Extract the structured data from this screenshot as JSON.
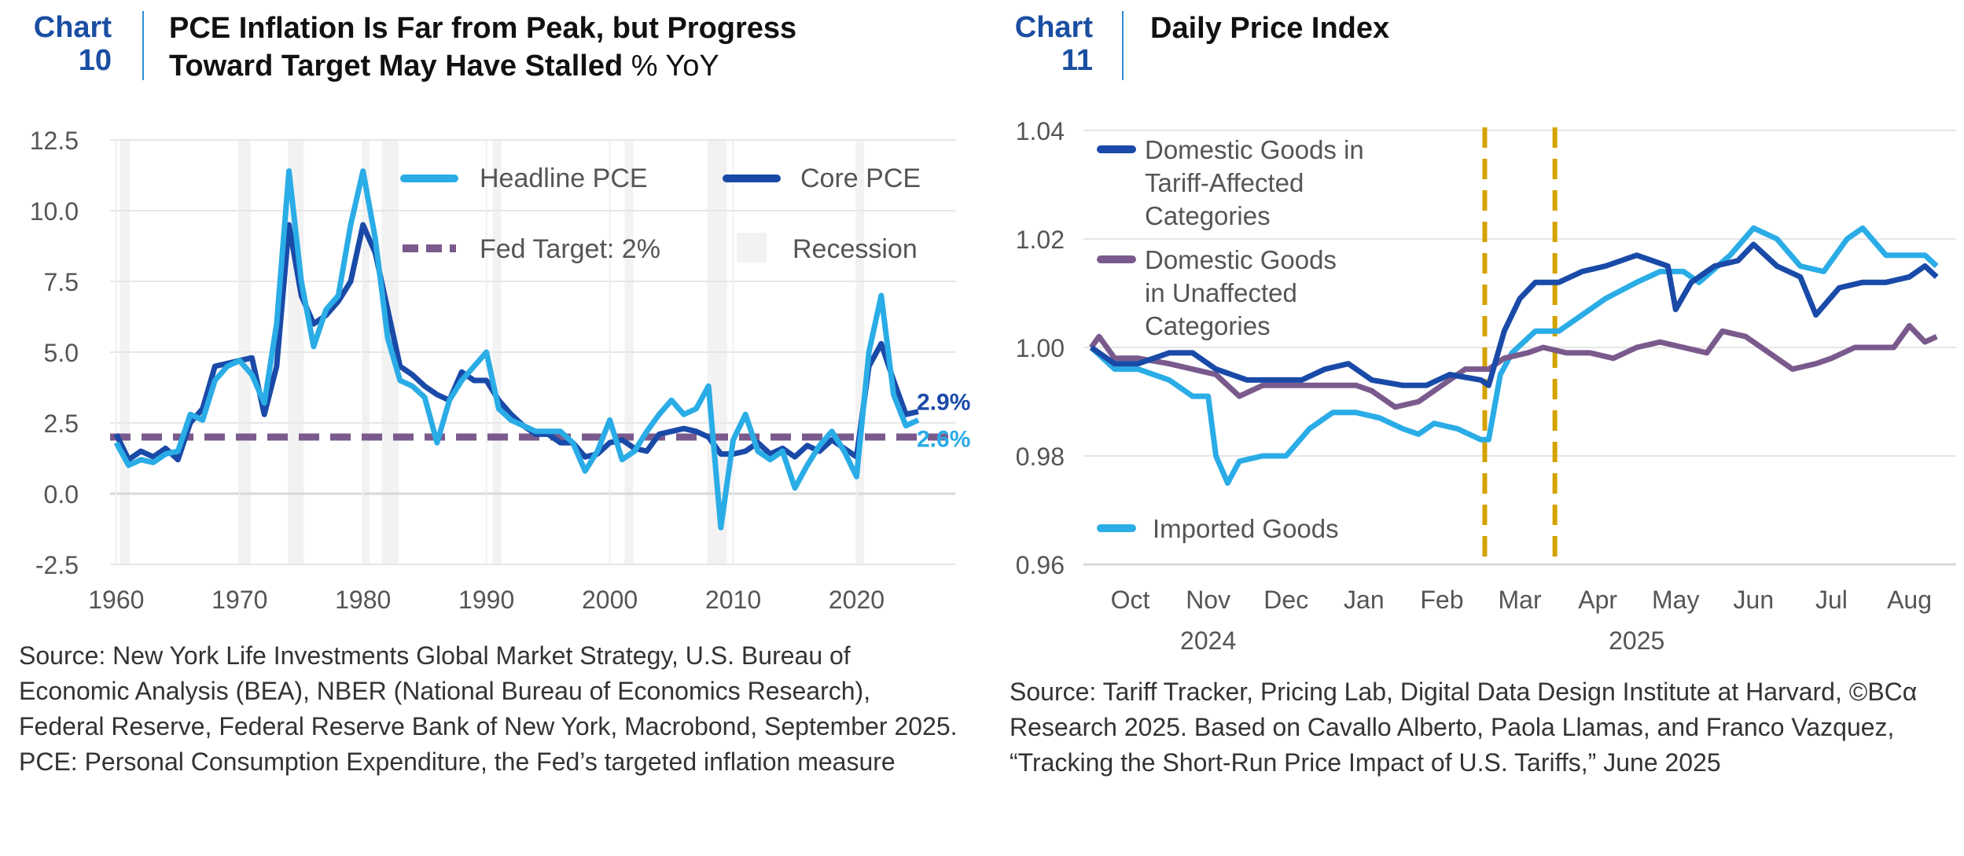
{
  "chart10": {
    "label_word": "Chart",
    "label_num": "10",
    "title_line1": "PCE Inflation Is Far from Peak, but Progress",
    "title_line2": "Toward Target May Have Stalled",
    "unit": "% YoY",
    "source": "Source: New York Life Investments Global Market Strategy, U.S. Bureau of Economic Analysis (BEA), NBER (National Bureau of Economics Research), Federal Reserve, Federal Reserve Bank of New York, Macrobond, September 2025. PCE: Personal Consumption Expenditure, the Fed’s targeted inflation measure"
  },
  "chart11": {
    "label_word": "Chart",
    "label_num": "11",
    "title": "Daily Price Index",
    "source": "Source: Tariff Tracker, Pricing Lab, Digital Data Design Institute at Harvard, ©BCα Research 2025. Based on Cavallo Alberto, Paola Llamas, and Franco Vazquez, “Tracking the Short-Run Price Impact of U.S. Tariffs,” June 2025"
  },
  "colors": {
    "headline": "#2aace6",
    "core": "#1a4aa8",
    "target": "#7a5a8c",
    "recession": "#f2f2f2",
    "tariff_line": "#d4a300",
    "grid": "#e6e6e6"
  },
  "chart_data": [
    {
      "type": "line",
      "title": "PCE Inflation Is Far from Peak, but Progress Toward Target May Have Stalled",
      "ylabel": "% YoY",
      "xlim": [
        1959.5,
        2028
      ],
      "ylim": [
        -2.5,
        12.5
      ],
      "yticks": [
        "12.5",
        "10.0",
        "7.5",
        "5.0",
        "2.5",
        "0.0",
        "-2.5"
      ],
      "ytick_values": [
        12.5,
        10,
        7.5,
        5,
        2.5,
        0,
        -2.5
      ],
      "xticks": [
        "1960",
        "1970",
        "1980",
        "1990",
        "2000",
        "2010",
        "2020"
      ],
      "xtick_values": [
        1960,
        1970,
        1980,
        1990,
        2000,
        2010,
        2020
      ],
      "x": [
        1960,
        1961,
        1962,
        1963,
        1964,
        1965,
        1966,
        1967,
        1968,
        1969,
        1970,
        1971,
        1972,
        1973,
        1974,
        1975,
        1976,
        1977,
        1978,
        1979,
        1980,
        1981,
        1982,
        1983,
        1984,
        1985,
        1986,
        1987,
        1988,
        1989,
        1990,
        1991,
        1992,
        1993,
        1994,
        1995,
        1996,
        1997,
        1998,
        1999,
        2000,
        2001,
        2002,
        2003,
        2004,
        2005,
        2006,
        2007,
        2008,
        2009,
        2010,
        2011,
        2012,
        2013,
        2014,
        2015,
        2016,
        2017,
        2018,
        2019,
        2020,
        2021,
        2022,
        2023,
        2024,
        2025
      ],
      "series": [
        {
          "name": "Headline PCE",
          "values": [
            1.8,
            1.0,
            1.2,
            1.1,
            1.4,
            1.5,
            2.8,
            2.6,
            4.0,
            4.5,
            4.7,
            4.2,
            3.2,
            6.0,
            11.4,
            7.5,
            5.2,
            6.5,
            7.0,
            9.5,
            11.4,
            9.0,
            5.5,
            4.0,
            3.8,
            3.4,
            1.8,
            3.3,
            4.0,
            4.5,
            5.0,
            3.0,
            2.6,
            2.4,
            2.2,
            2.2,
            2.2,
            1.8,
            0.8,
            1.5,
            2.6,
            1.2,
            1.5,
            2.2,
            2.8,
            3.3,
            2.8,
            3.0,
            3.8,
            -1.2,
            1.9,
            2.8,
            1.5,
            1.2,
            1.5,
            0.2,
            1.0,
            1.7,
            2.2,
            1.5,
            0.6,
            5.0,
            7.0,
            3.5,
            2.4,
            2.6
          ],
          "end_label": "2.6%"
        },
        {
          "name": "Core PCE",
          "values": [
            2.1,
            1.2,
            1.5,
            1.3,
            1.6,
            1.2,
            2.5,
            3.0,
            4.5,
            4.6,
            4.7,
            4.8,
            2.8,
            4.5,
            9.5,
            7.0,
            6.0,
            6.3,
            6.8,
            7.5,
            9.5,
            8.5,
            6.5,
            4.5,
            4.2,
            3.8,
            3.5,
            3.3,
            4.3,
            4.0,
            4.0,
            3.3,
            2.8,
            2.4,
            2.1,
            2.1,
            1.8,
            1.8,
            1.3,
            1.4,
            1.8,
            1.9,
            1.6,
            1.5,
            2.1,
            2.2,
            2.3,
            2.2,
            2.0,
            1.4,
            1.4,
            1.5,
            1.8,
            1.4,
            1.6,
            1.3,
            1.7,
            1.5,
            1.9,
            1.6,
            1.3,
            4.5,
            5.3,
            4.0,
            2.8,
            2.9
          ],
          "end_label": "2.9%"
        }
      ],
      "reference_line": {
        "name": "Fed Target: 2%",
        "value": 2
      },
      "recessions": [
        [
          1960.3,
          1961.1
        ],
        [
          1969.9,
          1970.9
        ],
        [
          1973.9,
          1975.2
        ],
        [
          1980.0,
          1980.5
        ],
        [
          1981.5,
          1982.9
        ],
        [
          1990.5,
          1991.2
        ],
        [
          2001.2,
          2001.9
        ],
        [
          2007.9,
          2009.5
        ],
        [
          2020.1,
          2020.4
        ]
      ],
      "recession_label": "Recession",
      "legend": "top-right",
      "grid": true
    },
    {
      "type": "line",
      "title": "Daily Price Index",
      "xlim": [
        0,
        11.1
      ],
      "ylim": [
        0.96,
        1.04
      ],
      "yticks": [
        "1.04",
        "1.02",
        "1.00",
        "0.98",
        "0.96"
      ],
      "ytick_values": [
        1.04,
        1.02,
        1.0,
        0.98,
        0.96
      ],
      "xticks": [
        "Oct",
        "Nov",
        "Dec",
        "Jan",
        "Feb",
        "Mar",
        "Apr",
        "May",
        "Jun",
        "Jul",
        "Aug"
      ],
      "xtick_values": [
        0.5,
        1.5,
        2.5,
        3.5,
        4.5,
        5.5,
        6.5,
        7.5,
        8.5,
        9.5,
        10.5
      ],
      "year_labels": [
        "2024",
        "2025"
      ],
      "year_label_positions": [
        1.5,
        7.0
      ],
      "vertical_markers": [
        5.05,
        5.95
      ],
      "series": [
        {
          "name": "Domestic Goods in Tariff-Affected Categories",
          "legend_lines": [
            "Domestic Goods in",
            "Tariff-Affected",
            "Categories"
          ],
          "x": [
            0,
            0.3,
            0.6,
            1.0,
            1.3,
            1.6,
            2.0,
            2.3,
            2.7,
            3.0,
            3.3,
            3.6,
            4.0,
            4.3,
            4.6,
            5.0,
            5.1,
            5.3,
            5.5,
            5.7,
            6.0,
            6.3,
            6.6,
            7.0,
            7.2,
            7.4,
            7.5,
            7.7,
            8.0,
            8.3,
            8.5,
            8.8,
            9.1,
            9.3,
            9.6,
            9.9,
            10.2,
            10.5,
            10.7,
            10.85
          ],
          "values": [
            1.0,
            0.997,
            0.997,
            0.999,
            0.999,
            0.996,
            0.994,
            0.994,
            0.994,
            0.996,
            0.997,
            0.994,
            0.993,
            0.993,
            0.995,
            0.994,
            0.993,
            1.003,
            1.009,
            1.012,
            1.012,
            1.014,
            1.015,
            1.017,
            1.016,
            1.015,
            1.007,
            1.012,
            1.015,
            1.016,
            1.019,
            1.015,
            1.013,
            1.006,
            1.011,
            1.012,
            1.012,
            1.013,
            1.015,
            1.013
          ]
        },
        {
          "name": "Domestic Goods in Unaffected Categories",
          "legend_lines": [
            "Domestic Goods",
            "in Unaffected",
            "Categories"
          ],
          "x": [
            0,
            0.1,
            0.3,
            0.6,
            1.0,
            1.3,
            1.6,
            1.9,
            2.2,
            2.5,
            2.8,
            3.1,
            3.4,
            3.6,
            3.9,
            4.2,
            4.5,
            4.8,
            5.1,
            5.3,
            5.6,
            5.8,
            6.1,
            6.4,
            6.7,
            7.0,
            7.3,
            7.6,
            7.9,
            8.1,
            8.4,
            8.7,
            9.0,
            9.3,
            9.5,
            9.8,
            10.1,
            10.3,
            10.5,
            10.7,
            10.85
          ],
          "values": [
            1.0,
            1.002,
            0.998,
            0.998,
            0.997,
            0.996,
            0.995,
            0.991,
            0.993,
            0.993,
            0.993,
            0.993,
            0.993,
            0.992,
            0.989,
            0.99,
            0.993,
            0.996,
            0.996,
            0.998,
            0.999,
            1.0,
            0.999,
            0.999,
            0.998,
            1.0,
            1.001,
            1.0,
            0.999,
            1.003,
            1.002,
            0.999,
            0.996,
            0.997,
            0.998,
            1.0,
            1.0,
            1.0,
            1.004,
            1.001,
            1.002
          ]
        },
        {
          "name": "Imported Goods",
          "legend_lines": [
            "Imported Goods"
          ],
          "x": [
            0,
            0.3,
            0.6,
            1.0,
            1.3,
            1.5,
            1.6,
            1.75,
            1.9,
            2.2,
            2.5,
            2.8,
            3.1,
            3.4,
            3.7,
            4.0,
            4.2,
            4.4,
            4.7,
            5.0,
            5.1,
            5.25,
            5.4,
            5.7,
            6.0,
            6.3,
            6.6,
            7.0,
            7.3,
            7.6,
            7.8,
            8.2,
            8.5,
            8.8,
            9.1,
            9.4,
            9.7,
            9.9,
            10.2,
            10.5,
            10.7,
            10.85
          ],
          "values": [
            1.0,
            0.996,
            0.996,
            0.994,
            0.991,
            0.991,
            0.98,
            0.975,
            0.979,
            0.98,
            0.98,
            0.985,
            0.988,
            0.988,
            0.987,
            0.985,
            0.984,
            0.986,
            0.985,
            0.983,
            0.983,
            0.995,
            0.999,
            1.003,
            1.003,
            1.006,
            1.009,
            1.012,
            1.014,
            1.014,
            1.012,
            1.017,
            1.022,
            1.02,
            1.015,
            1.014,
            1.02,
            1.022,
            1.017,
            1.017,
            1.017,
            1.015
          ]
        }
      ],
      "grid": true
    }
  ]
}
